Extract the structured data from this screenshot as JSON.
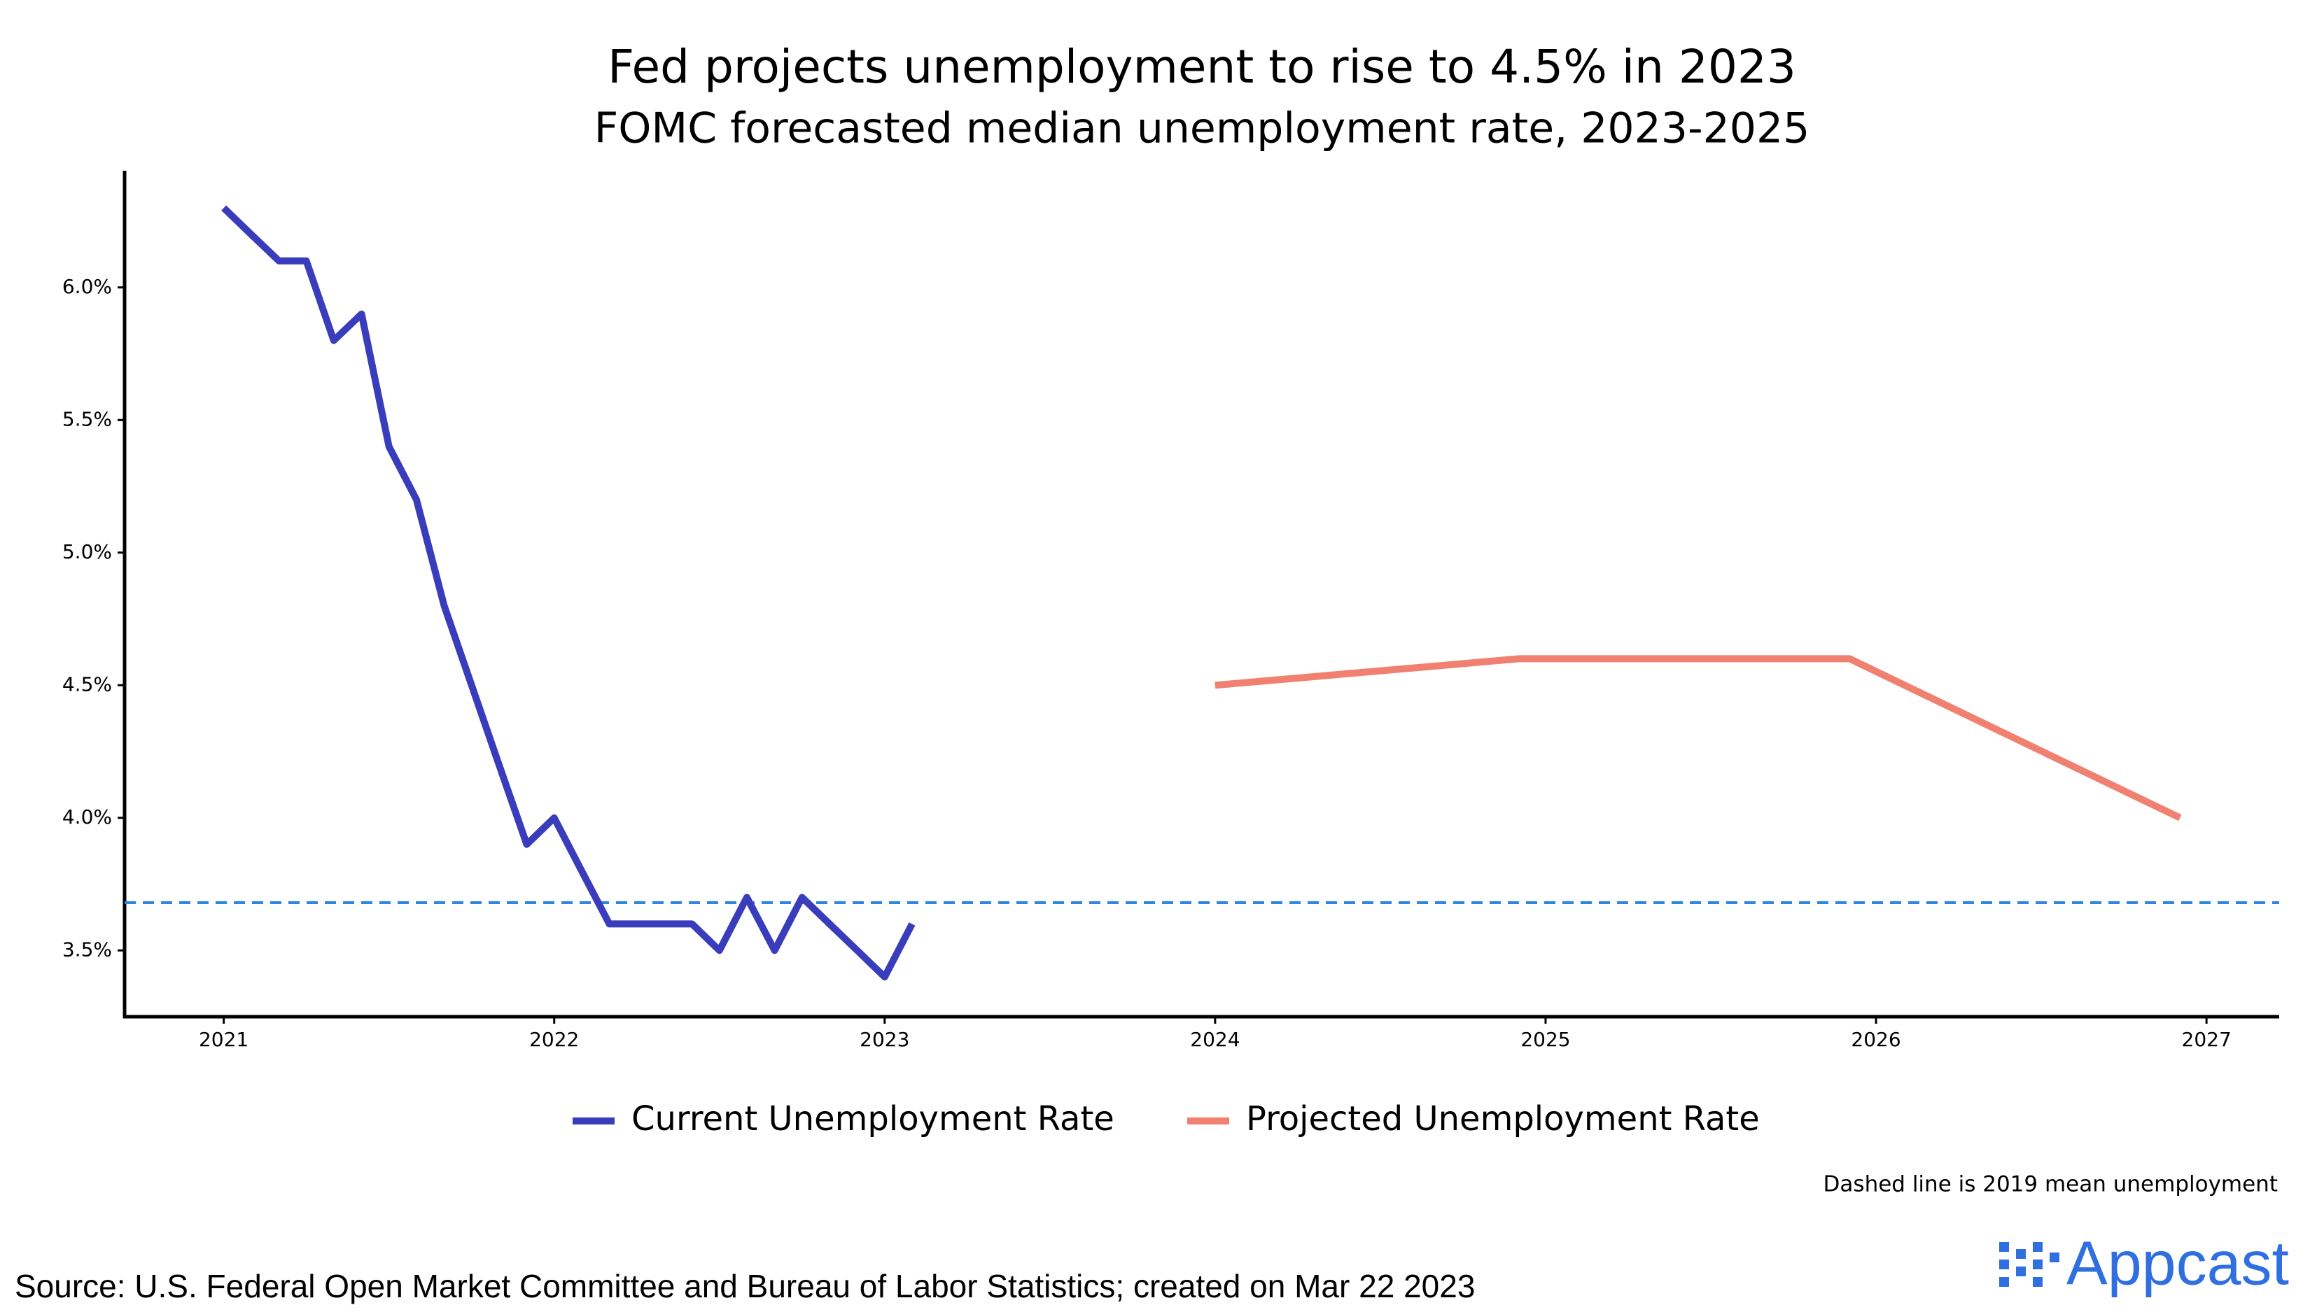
{
  "chart_data": {
    "type": "line",
    "title": "Fed projects unemployment to rise to 4.5% in 2023",
    "subtitle": "FOMC forecasted median unemployment rate, 2023-2025",
    "xlim": [
      2020.7,
      2027.22
    ],
    "xticks": [
      2021,
      2022,
      2023,
      2024,
      2025,
      2026,
      2027
    ],
    "ylim": [
      3.25,
      6.44
    ],
    "yticks": [
      {
        "value": 3.5,
        "label": "3.5%"
      },
      {
        "value": 4.0,
        "label": "4.0%"
      },
      {
        "value": 4.5,
        "label": "4.5%"
      },
      {
        "value": 5.0,
        "label": "5.0%"
      },
      {
        "value": 5.5,
        "label": "5.5%"
      },
      {
        "value": 6.0,
        "label": "6.0%"
      }
    ],
    "series": [
      {
        "name": "Current Unemployment Rate",
        "color": "#3a3dbb",
        "x": [
          2021,
          2021.083,
          2021.167,
          2021.25,
          2021.333,
          2021.417,
          2021.5,
          2021.583,
          2021.667,
          2021.75,
          2021.833,
          2021.917,
          2022,
          2022.083,
          2022.167,
          2022.25,
          2022.333,
          2022.417,
          2022.5,
          2022.583,
          2022.667,
          2022.75,
          2022.833,
          2022.917,
          2023,
          2023.083
        ],
        "values": [
          6.3,
          6.2,
          6.1,
          6.1,
          5.8,
          5.9,
          5.4,
          5.2,
          4.8,
          4.5,
          4.2,
          3.9,
          4.0,
          3.8,
          3.6,
          3.6,
          3.6,
          3.6,
          3.5,
          3.7,
          3.5,
          3.7,
          3.6,
          3.5,
          3.4,
          3.6
        ]
      },
      {
        "name": "Projected Unemployment Rate",
        "color": "#f08070",
        "x": [
          2024,
          2024.92,
          2025.92,
          2026.92
        ],
        "values": [
          4.5,
          4.6,
          4.6,
          4.0
        ]
      }
    ],
    "reference_line": {
      "value": 3.68,
      "color": "#2f86e0"
    },
    "note": "Dashed line is 2019 mean unemployment",
    "source": "Source: U.S. Federal Open Market Committee and Bureau of Labor Statistics; created on Mar 22 2023",
    "brand": "Appcast"
  }
}
